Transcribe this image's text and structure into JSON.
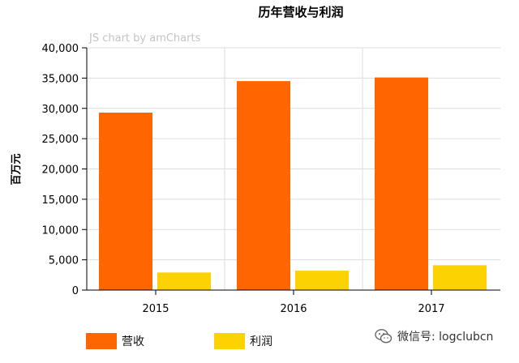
{
  "chart_data": {
    "type": "bar",
    "title": "历年营收与利润",
    "credit": "JS chart by amCharts",
    "ylabel": "百万元",
    "xlabel": "",
    "categories": [
      "2015",
      "2016",
      "2017"
    ],
    "ylim": [
      0,
      40000
    ],
    "yticks": [
      "0",
      "5,000",
      "10,000",
      "15,000",
      "20,000",
      "25,000",
      "30,000",
      "35,000",
      "40,000"
    ],
    "grid": true,
    "legend_position": "bottom-left",
    "series": [
      {
        "name": "营收",
        "color": "#ff6600",
        "values": [
          29300,
          34500,
          35100
        ]
      },
      {
        "name": "利润",
        "color": "#fcd202",
        "values": [
          2900,
          3200,
          4100
        ]
      }
    ]
  },
  "watermark": {
    "text": "微信号: logclubcn",
    "icon": "wechat-icon"
  }
}
